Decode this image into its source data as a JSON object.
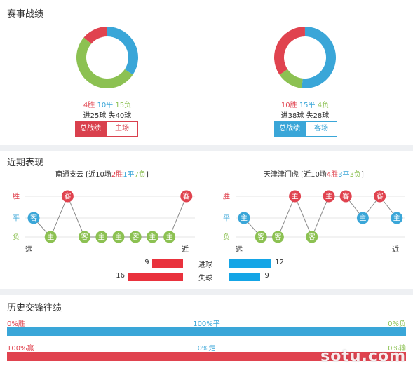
{
  "record_section": {
    "title": "赛事战绩",
    "home": {
      "wins": "4胜",
      "draws": "10平",
      "losses": "15负",
      "goals": "进25球 失40球",
      "win_n": 4,
      "draw_n": 10,
      "loss_n": 15,
      "tab_total": "总战绩",
      "tab_venue": "主场"
    },
    "away": {
      "wins": "10胜",
      "draws": "15平",
      "losses": "4负",
      "goals": "进38球 失28球",
      "win_n": 10,
      "draw_n": 15,
      "loss_n": 4,
      "tab_total": "总战绩",
      "tab_venue": "客场"
    }
  },
  "recent_section": {
    "title": "近期表现",
    "home": {
      "team": "南通支云",
      "prefix": " [近10场",
      "w": "2胜",
      "d": "1平",
      "l": "7负",
      "suffix": "]",
      "results": [
        {
          "r": "d",
          "v": "客"
        },
        {
          "r": "l",
          "v": "主"
        },
        {
          "r": "w",
          "v": "客"
        },
        {
          "r": "l",
          "v": "客"
        },
        {
          "r": "l",
          "v": "主"
        },
        {
          "r": "l",
          "v": "主"
        },
        {
          "r": "l",
          "v": "客"
        },
        {
          "r": "l",
          "v": "主"
        },
        {
          "r": "l",
          "v": "主"
        },
        {
          "r": "w",
          "v": "客"
        }
      ]
    },
    "away": {
      "team": "天津津门虎",
      "prefix": " [近10场",
      "w": "4胜",
      "d": "3平",
      "l": "3负",
      "suffix": "]",
      "results": [
        {
          "r": "d",
          "v": "主"
        },
        {
          "r": "l",
          "v": "客"
        },
        {
          "r": "l",
          "v": "客"
        },
        {
          "r": "w",
          "v": "主"
        },
        {
          "r": "l",
          "v": "客"
        },
        {
          "r": "w",
          "v": "主"
        },
        {
          "r": "w",
          "v": "客"
        },
        {
          "r": "d",
          "v": "主"
        },
        {
          "r": "w",
          "v": "客"
        },
        {
          "r": "d",
          "v": "主"
        }
      ]
    },
    "axis": {
      "win": "胜",
      "draw": "平",
      "loss": "负",
      "far": "远",
      "near": "近"
    },
    "compare": {
      "scored_label": "进球",
      "conceded_label": "失球",
      "home_scored": 9,
      "home_conceded": 16,
      "away_scored": 12,
      "away_conceded": 9,
      "max": 16
    }
  },
  "history_section": {
    "title": "历史交锋往绩",
    "row1": {
      "left": "0%胜",
      "mid": "100%平",
      "right": "0%负",
      "left_pct": 0,
      "mid_pct": 100,
      "right_pct": 0
    },
    "row2": {
      "left": "100%赢",
      "mid": "0%走",
      "right": "0%输",
      "left_pct": 100,
      "mid_pct": 0,
      "right_pct": 0
    }
  },
  "watermark": "sotu.com",
  "colors": {
    "win": "#e0434f",
    "draw": "#3aa6d8",
    "loss": "#8cc152",
    "home_bar": "#e9323d",
    "away_bar": "#14a5e6"
  }
}
